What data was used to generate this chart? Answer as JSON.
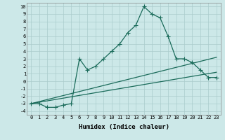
{
  "title": "",
  "xlabel": "Humidex (Indice chaleur)",
  "bg_color": "#cce8e8",
  "grid_color": "#aacccc",
  "line_color": "#1a6b5a",
  "xlim": [
    -0.5,
    23.5
  ],
  "ylim": [
    -4.5,
    10.5
  ],
  "xticks": [
    0,
    1,
    2,
    3,
    4,
    5,
    6,
    7,
    8,
    9,
    10,
    11,
    12,
    13,
    14,
    15,
    16,
    17,
    18,
    19,
    20,
    21,
    22,
    23
  ],
  "yticks": [
    -4,
    -3,
    -2,
    -1,
    0,
    1,
    2,
    3,
    4,
    5,
    6,
    7,
    8,
    9,
    10
  ],
  "line1_x": [
    0,
    1,
    2,
    3,
    4,
    5,
    6,
    7,
    8,
    9,
    10,
    11,
    12,
    13,
    14,
    15,
    16,
    17,
    18,
    19,
    20,
    21,
    22,
    23
  ],
  "line1_y": [
    -3,
    -3,
    -3.5,
    -3.5,
    -3.2,
    -3,
    3,
    1.5,
    2,
    3,
    4,
    5,
    6.5,
    7.5,
    10,
    9,
    8.5,
    6,
    3,
    3,
    2.5,
    1.5,
    0.5,
    0.5
  ],
  "line2_x": [
    0,
    23
  ],
  "line2_y": [
    -3,
    3.2
  ],
  "line3_x": [
    0,
    23
  ],
  "line3_y": [
    -3,
    1.2
  ],
  "marker": "+",
  "markersize": 4,
  "linewidth": 0.9,
  "tick_fontsize": 5,
  "xlabel_fontsize": 6.5
}
